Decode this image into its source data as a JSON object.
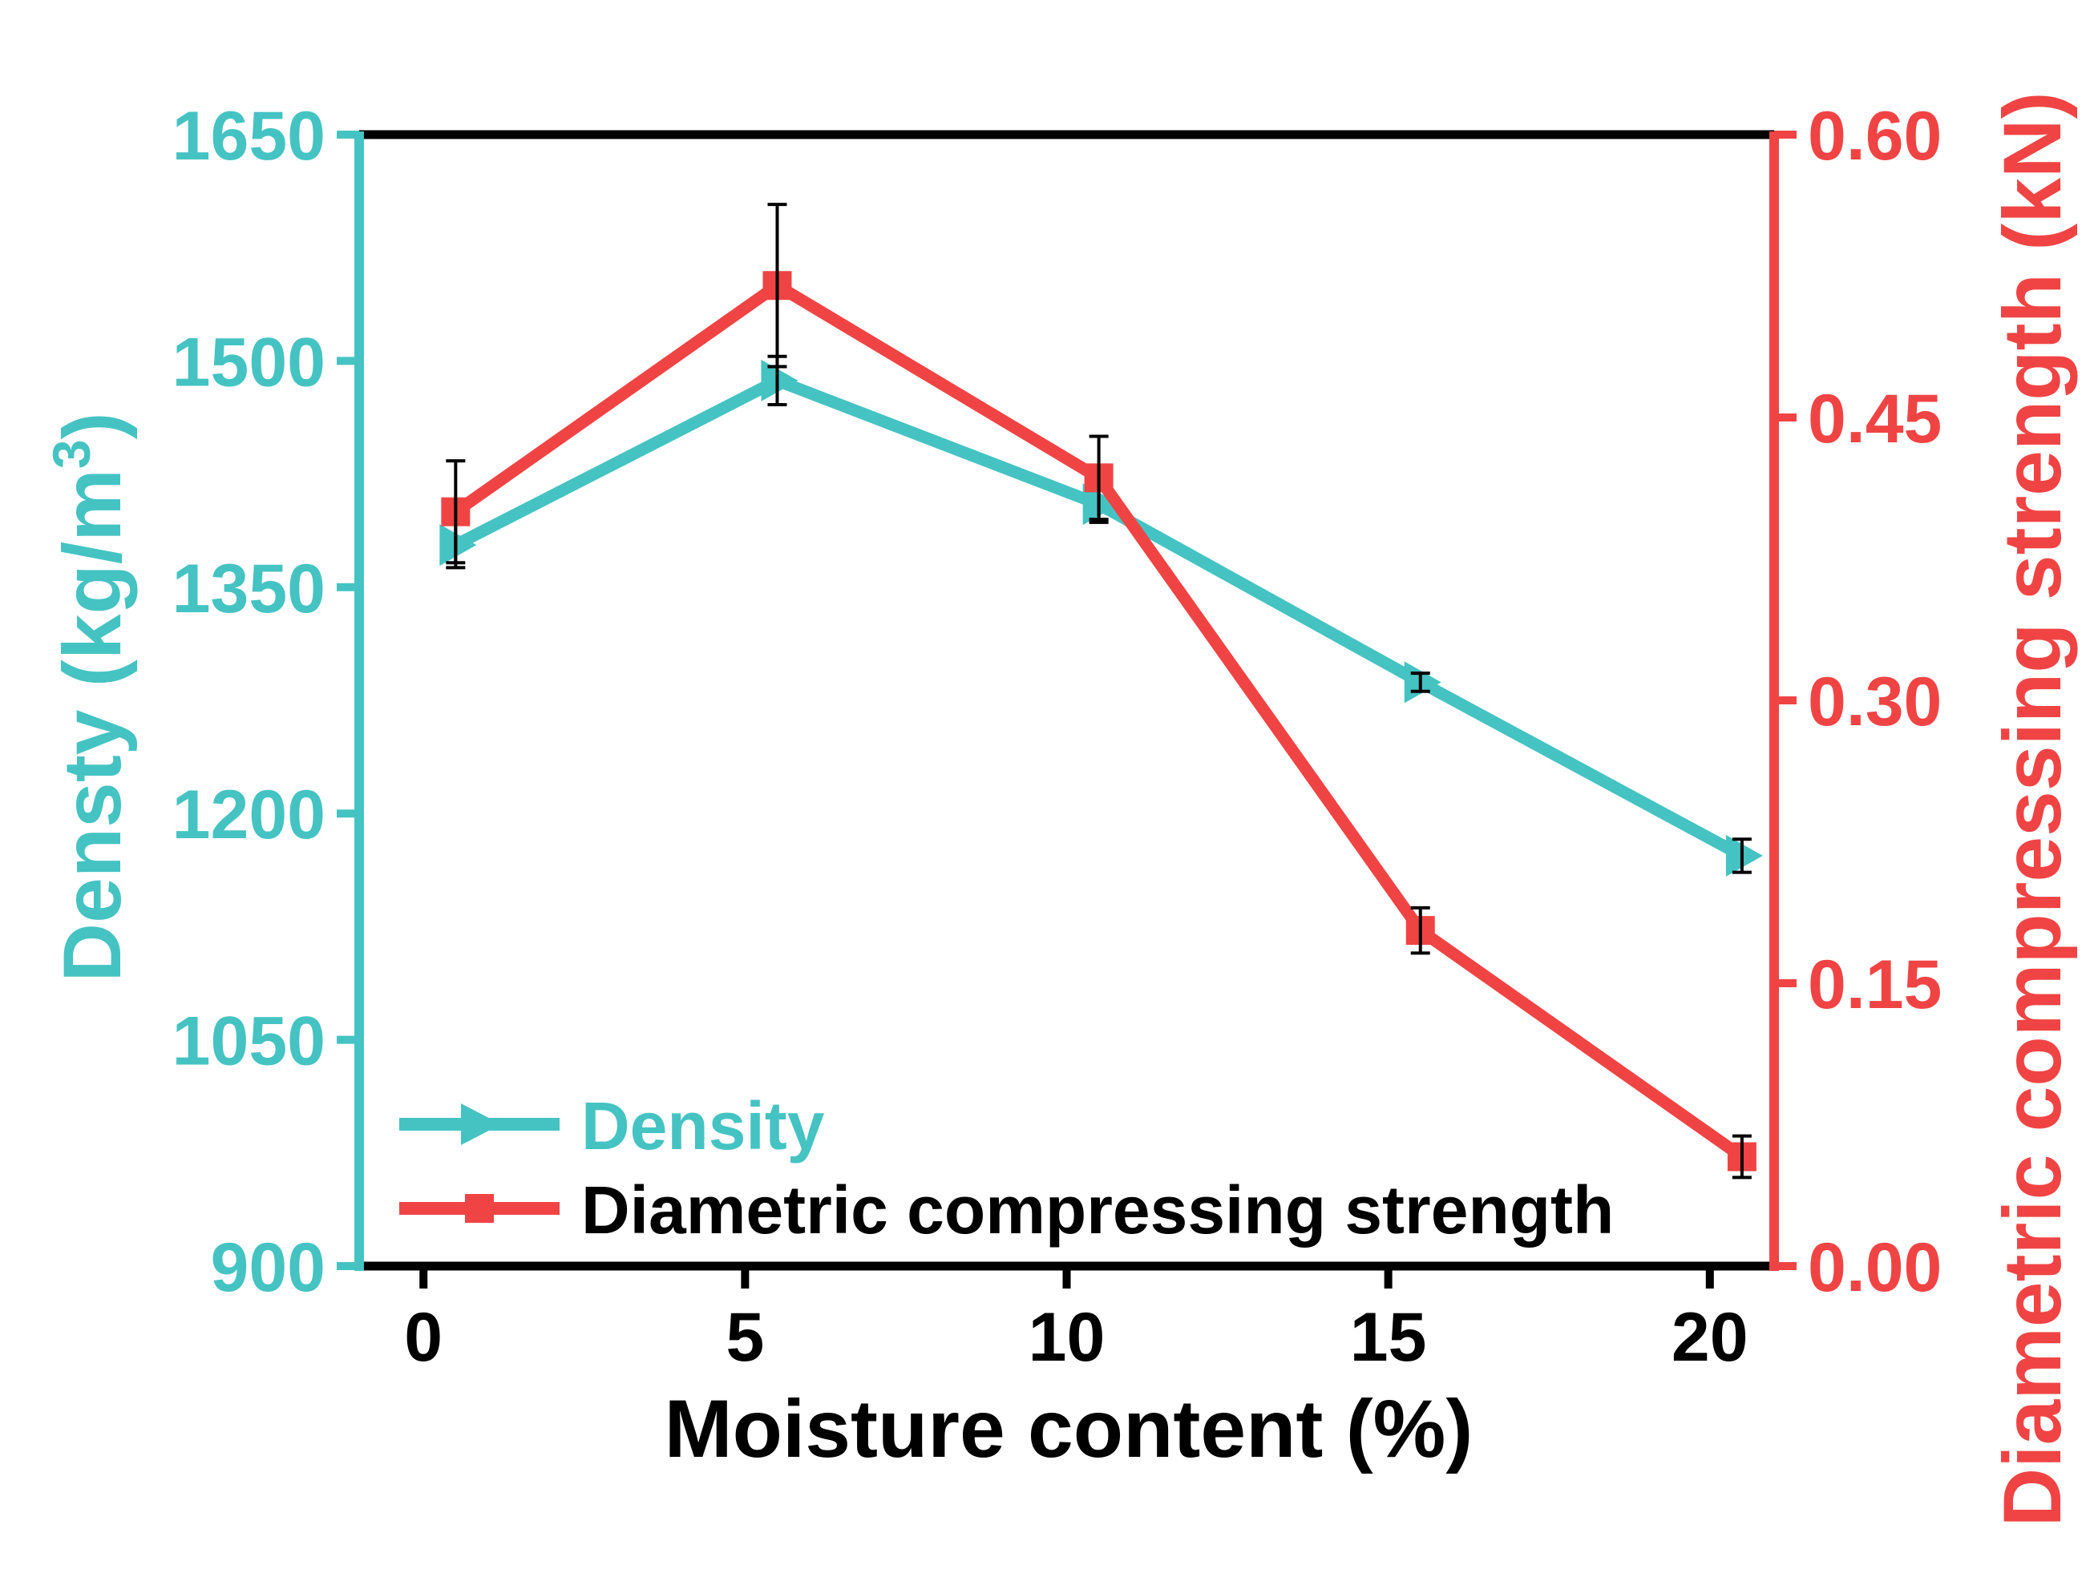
{
  "colors": {
    "density": "#45C3C3",
    "strength": "#F04444",
    "axis": "#000000",
    "error_bar": "#000000"
  },
  "chart_data": {
    "type": "line",
    "title": "",
    "xlabel": "Moisture content (%)",
    "xlim": [
      -1,
      21
    ],
    "x_ticks": [
      0,
      5,
      10,
      15,
      20
    ],
    "x_tick_labels": [
      "0",
      "5",
      "10",
      "15",
      "20"
    ],
    "y_left": {
      "label": "Densty (kg/m",
      "label_superscript": "3",
      "label_suffix": ")",
      "lim": [
        900,
        1650
      ],
      "ticks": [
        900,
        1050,
        1200,
        1350,
        1500,
        1650
      ],
      "tick_labels": [
        "900",
        "1050",
        "1200",
        "1350",
        "1500",
        "1650"
      ]
    },
    "y_right": {
      "label": "Diametric compressing strength (kN)",
      "lim": [
        0.0,
        0.6
      ],
      "ticks": [
        0.0,
        0.15,
        0.3,
        0.45,
        0.6
      ],
      "tick_labels": [
        "0.00",
        "0.15",
        "0.30",
        "0.45",
        "0.60"
      ]
    },
    "legend_position": "bottom-left",
    "series": [
      {
        "name": "Density",
        "axis": "left",
        "marker": "triangle-right",
        "x": [
          0.5,
          5.5,
          10.5,
          15.5,
          20.5
        ],
        "values": [
          1378,
          1487,
          1405,
          1287,
          1172
        ],
        "errors": [
          15,
          16,
          12,
          6,
          11
        ]
      },
      {
        "name": "Diametric compressing strength",
        "axis": "right",
        "marker": "square",
        "x": [
          0.5,
          5.5,
          10.5,
          15.5,
          20.5
        ],
        "values": [
          0.4,
          0.52,
          0.418,
          0.178,
          0.058
        ],
        "errors": [
          0.027,
          0.043,
          0.022,
          0.012,
          0.011
        ]
      }
    ]
  }
}
